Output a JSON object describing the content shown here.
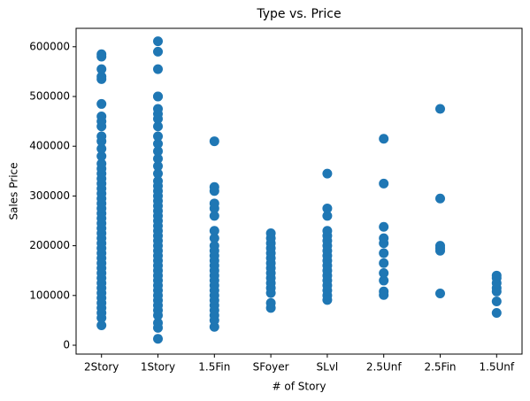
{
  "chart_data": {
    "type": "scatter",
    "title": "Type vs. Price",
    "x_label": "# of Story",
    "y_label": "Sales Price",
    "color": "#1f77b4",
    "groups": [
      {
        "category": "2Story",
        "values": [
          40000,
          55000,
          65000,
          75000,
          85000,
          95000,
          105000,
          115000,
          125000,
          135000,
          145000,
          155000,
          165000,
          175000,
          185000,
          195000,
          205000,
          215000,
          225000,
          235000,
          245000,
          255000,
          265000,
          275000,
          285000,
          295000,
          305000,
          315000,
          325000,
          335000,
          345000,
          355000,
          365000,
          380000,
          395000,
          410000,
          420000,
          440000,
          450000,
          460000,
          485000,
          535000,
          540000,
          555000,
          580000,
          585000
        ]
      },
      {
        "category": "1Story",
        "values": [
          13000,
          35000,
          45000,
          60000,
          70000,
          80000,
          90000,
          100000,
          110000,
          120000,
          130000,
          140000,
          150000,
          160000,
          170000,
          180000,
          190000,
          200000,
          210000,
          220000,
          230000,
          240000,
          250000,
          260000,
          270000,
          280000,
          290000,
          300000,
          310000,
          320000,
          330000,
          345000,
          360000,
          375000,
          390000,
          405000,
          420000,
          440000,
          455000,
          465000,
          475000,
          500000,
          500000,
          555000,
          590000,
          611000
        ]
      },
      {
        "category": "1.5Fin",
        "values": [
          37000,
          50000,
          60000,
          70000,
          80000,
          90000,
          100000,
          110000,
          120000,
          130000,
          140000,
          150000,
          160000,
          170000,
          180000,
          190000,
          200000,
          215000,
          230000,
          260000,
          275000,
          285000,
          310000,
          318000,
          410000
        ]
      },
      {
        "category": "SFoyer",
        "values": [
          75000,
          85000,
          105000,
          115000,
          125000,
          135000,
          145000,
          155000,
          165000,
          175000,
          185000,
          195000,
          205000,
          215000,
          225000
        ]
      },
      {
        "category": "SLvl",
        "values": [
          91000,
          100000,
          110000,
          120000,
          130000,
          140000,
          150000,
          160000,
          170000,
          180000,
          190000,
          200000,
          210000,
          220000,
          230000,
          260000,
          275000,
          345000
        ]
      },
      {
        "category": "2.5Unf",
        "values": [
          101000,
          108000,
          130000,
          145000,
          165000,
          185000,
          205000,
          215000,
          238000,
          325000,
          415000
        ]
      },
      {
        "category": "2.5Fin",
        "values": [
          104000,
          190000,
          195000,
          200000,
          295000,
          475000
        ]
      },
      {
        "category": "1.5Unf",
        "values": [
          65000,
          88000,
          108000,
          115000,
          125000,
          135000,
          140000
        ]
      }
    ],
    "ylim": [
      -17800,
      637000
    ],
    "yticks": [
      0,
      100000,
      200000,
      300000,
      400000,
      500000,
      600000
    ]
  }
}
